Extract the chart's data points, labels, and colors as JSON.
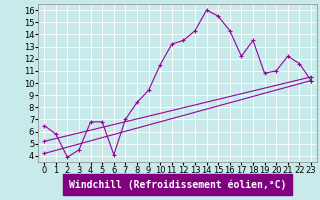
{
  "title": "",
  "xlabel": "Windchill (Refroidissement éolien,°C)",
  "bg_color": "#c8eaea",
  "line_color": "#990099",
  "xlim": [
    -0.5,
    23.5
  ],
  "ylim": [
    3.5,
    16.5
  ],
  "xticks": [
    0,
    1,
    2,
    3,
    4,
    5,
    6,
    7,
    8,
    9,
    10,
    11,
    12,
    13,
    14,
    15,
    16,
    17,
    18,
    19,
    20,
    21,
    22,
    23
  ],
  "yticks": [
    4,
    5,
    6,
    7,
    8,
    9,
    10,
    11,
    12,
    13,
    14,
    15,
    16
  ],
  "line1_x": [
    0,
    1,
    2,
    3,
    4,
    5,
    6,
    7,
    8,
    9,
    10,
    11,
    12,
    13,
    14,
    15,
    16,
    17,
    18,
    19,
    20,
    21,
    22,
    23
  ],
  "line1_y": [
    6.5,
    5.8,
    3.9,
    4.5,
    6.8,
    6.8,
    4.1,
    7.0,
    8.4,
    9.4,
    11.5,
    13.2,
    13.5,
    14.3,
    16.0,
    15.5,
    14.3,
    12.2,
    13.5,
    10.8,
    11.0,
    12.2,
    11.6,
    10.2
  ],
  "line2_x": [
    0,
    23
  ],
  "line2_y": [
    4.2,
    10.2
  ],
  "line3_x": [
    0,
    23
  ],
  "line3_y": [
    5.2,
    10.5
  ],
  "tick_fontsize": 6,
  "label_fontsize": 7,
  "xlabel_bg": "#800080",
  "xlabel_color": "white"
}
